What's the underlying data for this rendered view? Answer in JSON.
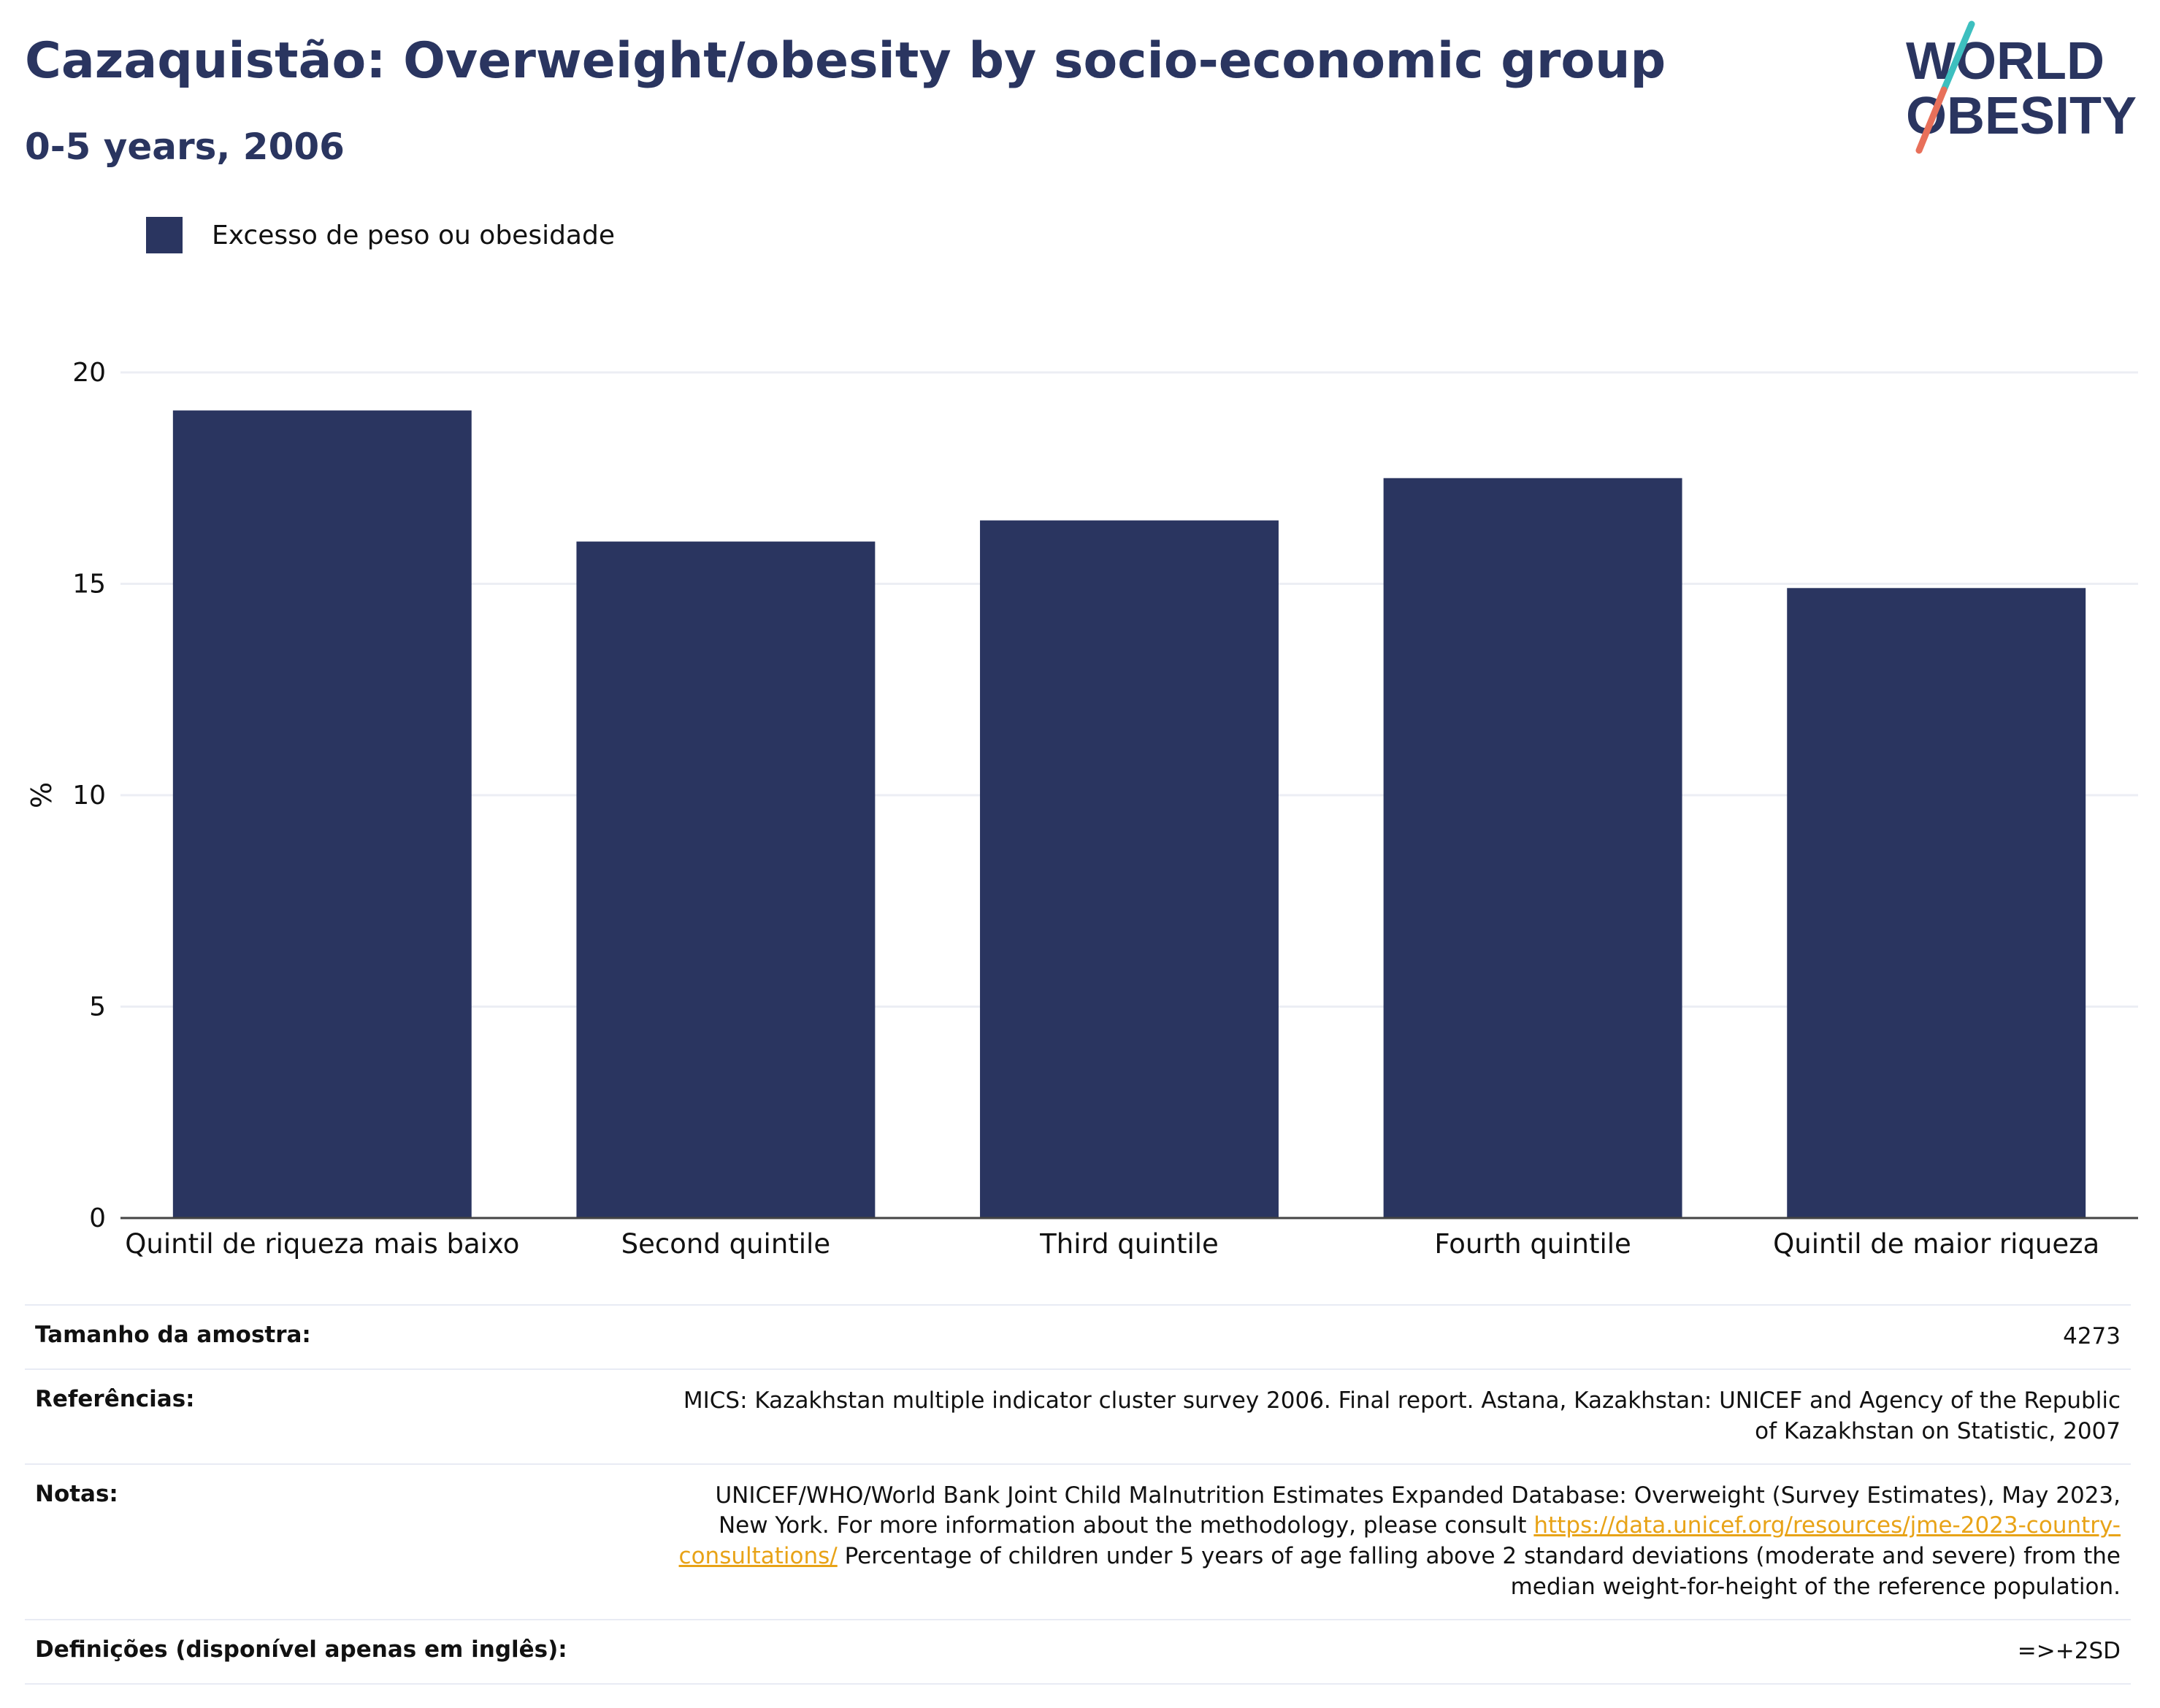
{
  "header": {
    "title": "Cazaquistão: Overweight/obesity by socio-economic group",
    "subtitle": "0-5 years, 2006"
  },
  "logo": {
    "line1": "WORLD",
    "line2": "OBESITY",
    "accent_teal": "#3dbfbf",
    "accent_coral": "#e8705a"
  },
  "legend": {
    "label": "Excesso de peso ou obesidade",
    "color": "#2a3560"
  },
  "chart_data": {
    "type": "bar",
    "categories": [
      "Quintil de riqueza mais baixo",
      "Second quintile",
      "Third quintile",
      "Fourth quintile",
      "Quintil de maior riqueza"
    ],
    "series": [
      {
        "name": "Excesso de peso ou obesidade",
        "values": [
          19.1,
          16.0,
          16.5,
          17.5,
          14.9
        ],
        "color": "#2a3560"
      }
    ],
    "ylabel": "%",
    "ylim": [
      0,
      20
    ],
    "yticks": [
      0,
      5,
      10,
      15,
      20
    ],
    "grid": true,
    "legend_position": "top-left"
  },
  "info": {
    "sample_label": "Tamanho da amostra:",
    "sample_value": "4273",
    "refs_label": "Referências:",
    "refs_value": "MICS: Kazakhstan multiple indicator cluster survey 2006. Final report. Astana, Kazakhstan: UNICEF and Agency of the Republic of Kazakhstan on Statistic, 2007",
    "notes_label": "Notas:",
    "notes_text_1": "UNICEF/WHO/World Bank Joint Child Malnutrition Estimates Expanded Database: Overweight (Survey Estimates), May 2023, New York. For more information about the methodology, please consult",
    "notes_link": "https://data.unicef.org/resources/jme-2023-country-consultations/",
    "notes_text_2": "Percentage of children under 5 years of age falling above 2 standard deviations (moderate and severe) from the median weight-for-height of the reference population.",
    "defs_label": "Definições (disponível apenas em inglês):",
    "defs_value": "=>+2SD"
  }
}
